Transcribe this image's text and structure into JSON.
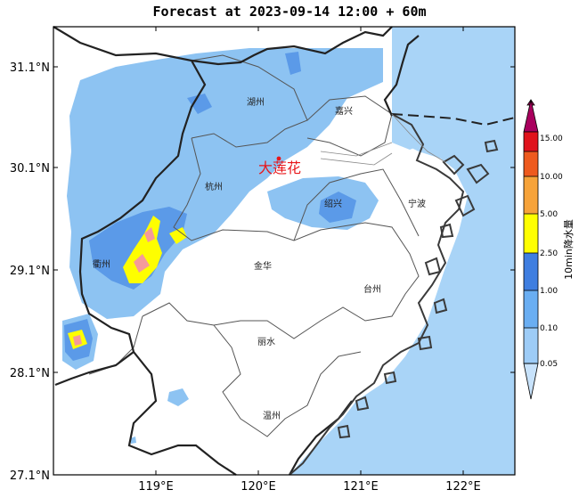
{
  "title": "Forecast at 2023-09-14 12:00 + 60m",
  "axes": {
    "lat_ticks": [
      "31.1°N",
      "30.1°N",
      "29.1°N",
      "28.1°N",
      "27.1°N"
    ],
    "lon_ticks": [
      "119°E",
      "120°E",
      "121°E",
      "122°E"
    ]
  },
  "cities": [
    {
      "name": "湖州"
    },
    {
      "name": "嘉兴"
    },
    {
      "name": "杭州"
    },
    {
      "name": "绍兴"
    },
    {
      "name": "宁波"
    },
    {
      "name": "衢州"
    },
    {
      "name": "金华"
    },
    {
      "name": "台州"
    },
    {
      "name": "丽水"
    },
    {
      "name": "温州"
    }
  ],
  "marker": {
    "label": "大莲花",
    "color": "#e8161a"
  },
  "colorbar": {
    "title": "10min降水量",
    "levels": [
      "0.05",
      "0.10",
      "1.00",
      "2.50",
      "5.00",
      "10.00",
      "15.00"
    ],
    "colors": [
      "#c7e2fb",
      "#9dccf7",
      "#6aaef2",
      "#3f7ee0",
      "#fefe00",
      "#f6a33a",
      "#ee5a1e",
      "#e0131c",
      "#a9005e"
    ]
  },
  "colors": {
    "sea": "#a9d4f7",
    "land": "#ffffff",
    "rain_light": "#8dc3f2",
    "rain_med": "#5b9ae8",
    "rain_heavy": "#fefe00",
    "rain_peak": "#f59a9a"
  }
}
